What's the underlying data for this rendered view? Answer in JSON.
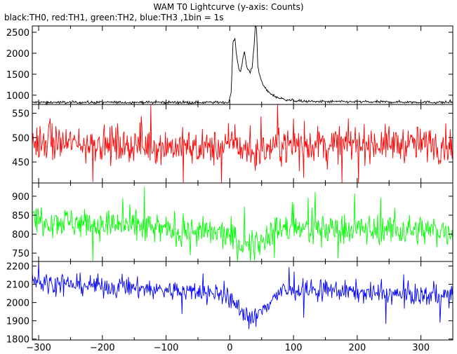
{
  "chart_data": {
    "type": "line",
    "title": "WAM T0 Lightcurve (y-axis: Counts)",
    "subtitle": "black:TH0, red:TH1, green:TH2, blue:TH3 ,1bin = 1s",
    "xlim": [
      -310,
      350
    ],
    "xticks": [
      -300,
      -200,
      -100,
      0,
      100,
      200,
      300
    ],
    "series": [
      {
        "name": "TH0",
        "color": "#000000",
        "ylim": [
          780,
          2650
        ],
        "yticks": [
          1000,
          1500,
          2000,
          2500
        ],
        "baseline": 830,
        "noise": 16,
        "spike_prob": 0.012,
        "spike_amp": 25,
        "profile": [
          [
            -310,
            830
          ],
          [
            -2,
            830
          ],
          [
            2,
            1050
          ],
          [
            5,
            2250
          ],
          [
            8,
            2350
          ],
          [
            11,
            1900
          ],
          [
            14,
            1650
          ],
          [
            17,
            1550
          ],
          [
            20,
            1850
          ],
          [
            23,
            2050
          ],
          [
            26,
            1700
          ],
          [
            29,
            1600
          ],
          [
            32,
            1550
          ],
          [
            35,
            1650
          ],
          [
            38,
            2150
          ],
          [
            40,
            2650
          ],
          [
            42,
            2600
          ],
          [
            44,
            1700
          ],
          [
            47,
            1450
          ],
          [
            52,
            1250
          ],
          [
            60,
            1080
          ],
          [
            70,
            980
          ],
          [
            80,
            920
          ],
          [
            95,
            880
          ],
          [
            120,
            850
          ],
          [
            350,
            830
          ]
        ]
      },
      {
        "name": "TH1",
        "color": "#ff0000",
        "ylim": [
          407,
          568
        ],
        "yticks": [
          450,
          500,
          550
        ],
        "baseline": 487,
        "noise": 18,
        "spike_prob": 0.02,
        "spike_amp": 45,
        "profile": [
          [
            -310,
            490
          ],
          [
            -150,
            485
          ],
          [
            -20,
            478
          ],
          [
            0,
            485
          ],
          [
            5,
            500
          ],
          [
            20,
            475
          ],
          [
            45,
            468
          ],
          [
            70,
            485
          ],
          [
            200,
            488
          ],
          [
            350,
            486
          ]
        ]
      },
      {
        "name": "TH2",
        "color": "#00ff00",
        "ylim": [
          728,
          935
        ],
        "yticks": [
          750,
          800,
          850,
          900
        ],
        "baseline": 815,
        "noise": 20,
        "spike_prob": 0.02,
        "spike_amp": 45,
        "profile": [
          [
            -310,
            840
          ],
          [
            -250,
            832
          ],
          [
            -150,
            818
          ],
          [
            -50,
            805
          ],
          [
            -10,
            800
          ],
          [
            5,
            790
          ],
          [
            20,
            772
          ],
          [
            38,
            765
          ],
          [
            50,
            785
          ],
          [
            70,
            812
          ],
          [
            150,
            815
          ],
          [
            250,
            812
          ],
          [
            350,
            808
          ]
        ]
      },
      {
        "name": "TH3",
        "color": "#0000ff",
        "ylim": [
          1795,
          2225
        ],
        "yticks": [
          1800,
          1900,
          2000,
          2100,
          2200
        ],
        "baseline": 2060,
        "noise": 28,
        "spike_prob": 0.015,
        "spike_amp": 70,
        "profile": [
          [
            -310,
            2140
          ],
          [
            -295,
            2110
          ],
          [
            -250,
            2100
          ],
          [
            -150,
            2080
          ],
          [
            -50,
            2055
          ],
          [
            -10,
            2050
          ],
          [
            0,
            2010
          ],
          [
            20,
            1960
          ],
          [
            35,
            1900
          ],
          [
            45,
            1930
          ],
          [
            60,
            2000
          ],
          [
            80,
            2060
          ],
          [
            150,
            2070
          ],
          [
            250,
            2045
          ],
          [
            350,
            2035
          ]
        ]
      }
    ]
  }
}
